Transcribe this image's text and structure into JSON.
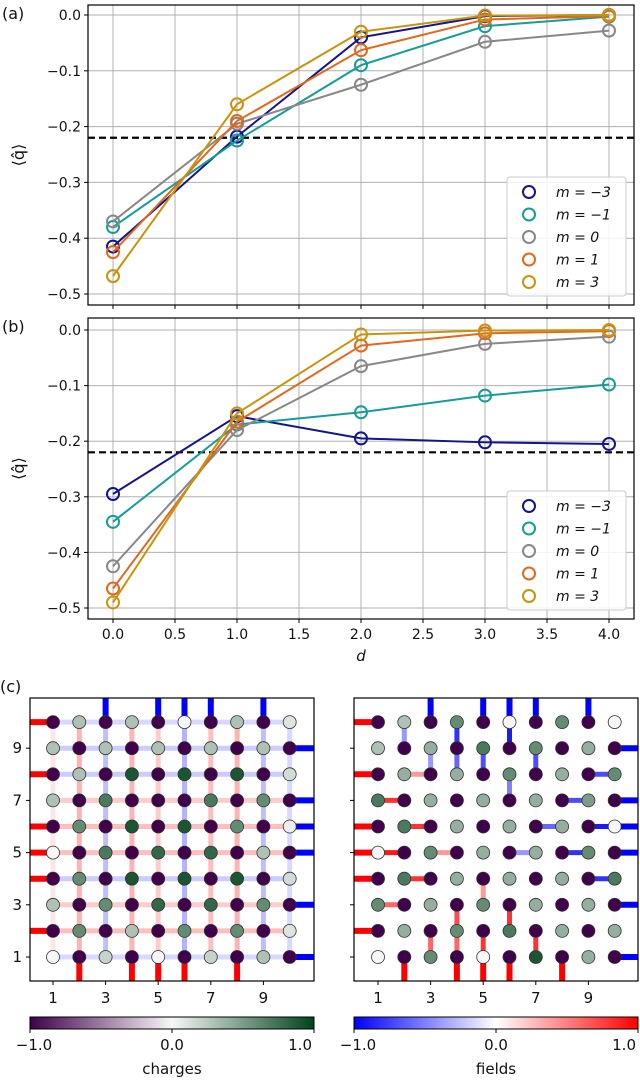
{
  "chart_data": [
    {
      "panel_label": "(a)",
      "type": "line",
      "x": [
        0,
        1,
        2,
        3,
        4
      ],
      "xlim": [
        -0.2,
        4.2
      ],
      "ylim": [
        -0.52,
        0.02
      ],
      "yticks": [
        0,
        -0.1,
        -0.2,
        -0.3,
        -0.4,
        -0.5
      ],
      "ytick_labels": [
        "0.0",
        "−0.1",
        "−0.2",
        "−0.3",
        "−0.4",
        "−0.5"
      ],
      "xticks": [
        0,
        0.5,
        1,
        1.5,
        2,
        2.5,
        3,
        3.5,
        4
      ],
      "ylabel": "⟨q̂⟩",
      "xlabel": "",
      "grid": true,
      "reference_line": -0.22,
      "legend": "lower-right",
      "series": [
        {
          "name": "m = −3",
          "color": "#14148c",
          "values": [
            -0.415,
            -0.218,
            -0.04,
            -0.002,
            0
          ]
        },
        {
          "name": "m = −1",
          "color": "#179c98",
          "values": [
            -0.38,
            -0.225,
            -0.09,
            -0.02,
            -0.003
          ]
        },
        {
          "name": "m = 0",
          "color": "#888888",
          "values": [
            -0.37,
            -0.195,
            -0.125,
            -0.048,
            -0.028
          ]
        },
        {
          "name": "m = 1",
          "color": "#e0691e",
          "values": [
            -0.425,
            -0.19,
            -0.063,
            -0.008,
            -0.002
          ]
        },
        {
          "name": "m = 3",
          "color": "#c8940f",
          "values": [
            -0.468,
            -0.16,
            -0.03,
            -0.001,
            0
          ]
        }
      ]
    },
    {
      "panel_label": "(b)",
      "type": "line",
      "x": [
        0,
        1,
        2,
        3,
        4
      ],
      "xlim": [
        -0.2,
        4.2
      ],
      "ylim": [
        -0.52,
        0.02
      ],
      "yticks": [
        0,
        -0.1,
        -0.2,
        -0.3,
        -0.4,
        -0.5
      ],
      "ytick_labels": [
        "0.0",
        "−0.1",
        "−0.2",
        "−0.3",
        "−0.4",
        "−0.5"
      ],
      "xticks": [
        0,
        0.5,
        1,
        1.5,
        2,
        2.5,
        3,
        3.5,
        4
      ],
      "xtick_labels": [
        "0.0",
        "0.5",
        "1.0",
        "1.5",
        "2.0",
        "2.5",
        "3.0",
        "3.5",
        "4.0"
      ],
      "ylabel": "⟨q̂⟩",
      "xlabel": "d",
      "grid": true,
      "reference_line": -0.22,
      "legend": "lower-right",
      "series": [
        {
          "name": "m = −3",
          "color": "#14148c",
          "values": [
            -0.295,
            -0.155,
            -0.195,
            -0.202,
            -0.205
          ]
        },
        {
          "name": "m = −1",
          "color": "#179c98",
          "values": [
            -0.345,
            -0.17,
            -0.148,
            -0.118,
            -0.098
          ]
        },
        {
          "name": "m = 0",
          "color": "#888888",
          "values": [
            -0.425,
            -0.18,
            -0.065,
            -0.025,
            -0.012
          ]
        },
        {
          "name": "m = 1",
          "color": "#e0691e",
          "values": [
            -0.465,
            -0.165,
            -0.028,
            -0.006,
            -0.002
          ]
        },
        {
          "name": "m = 3",
          "color": "#c8940f",
          "values": [
            -0.49,
            -0.15,
            -0.008,
            -0.001,
            0
          ]
        }
      ]
    },
    {
      "panel_label": "(c)",
      "type": "heatmap",
      "ticks": [
        1,
        3,
        5,
        7,
        9
      ],
      "tick_labels": [
        "1",
        "3",
        "5",
        "7",
        "9"
      ],
      "colorbars": [
        {
          "label": "charges",
          "range": [
            -1,
            1
          ],
          "tick_labels": [
            "−1.0",
            "0.0",
            "1.0"
          ],
          "colors": [
            "#40004b",
            "#f7f7f7",
            "#00441b"
          ]
        },
        {
          "label": "fields",
          "range": [
            -1,
            1
          ],
          "tick_labels": [
            "−1.0",
            "0.0",
            "1.0"
          ],
          "colors": [
            "#0000ff",
            "#ffffff",
            "#ff0000"
          ]
        }
      ],
      "lattices": [
        {
          "charges_rows_top_to_bottom": [
            [
              -1,
              0.3,
              -1,
              0.3,
              -1,
              0,
              -1,
              0.3,
              -1,
              0.1
            ],
            [
              0.3,
              -1,
              0.3,
              -1,
              0.3,
              -1,
              0.3,
              -1,
              0.3,
              -1
            ],
            [
              -1,
              0.3,
              -1,
              0.9,
              -1,
              0.9,
              -1,
              0.9,
              -1,
              0.15
            ],
            [
              0.3,
              -1,
              0.7,
              -1,
              -1,
              -1,
              0.7,
              -1,
              0.6,
              -1
            ],
            [
              -1,
              0.6,
              -1,
              0.9,
              -1,
              0.9,
              -1,
              0.6,
              -1,
              0.05
            ],
            [
              0,
              -1,
              0.7,
              -1,
              0.8,
              -1,
              0.8,
              -1,
              0.3,
              -1
            ],
            [
              -1,
              0.6,
              -1,
              0.9,
              -1,
              0.9,
              -1,
              0.9,
              -1,
              0.15
            ],
            [
              0.3,
              -1,
              0.6,
              -1,
              0.8,
              -1,
              0.8,
              -1,
              0.6,
              -1
            ],
            [
              -1,
              0.6,
              -1,
              0.3,
              -1,
              0.6,
              -1,
              0.6,
              -1,
              0.1
            ],
            [
              0,
              -1,
              0.2,
              -1,
              0,
              -1,
              0.2,
              -1,
              0.3,
              -1
            ]
          ],
          "row_link_fields_top_to_bottom": [
            -0.15,
            -0.2,
            -0.2,
            0.2,
            0.25,
            0.25,
            -0.2,
            0.2,
            0.25,
            -0.15
          ],
          "column_link_fields": [
            0.1,
            0.3,
            -0.25,
            0.3,
            0.2,
            -0.3,
            0.25,
            0.3,
            -0.25,
            -0.15
          ],
          "boundary": {
            "left_red_rows": [
              10,
              8,
              6,
              5,
              4,
              2
            ],
            "right_blue_rows": [
              9,
              7,
              6,
              5,
              3,
              1
            ],
            "top_blue_cols": [
              3,
              5,
              6,
              7,
              9
            ],
            "bottom_red_cols": [
              2,
              4,
              5,
              6,
              8
            ]
          }
        },
        {
          "charges_rows_top_to_bottom": [
            [
              -1,
              0.3,
              -1,
              0.6,
              -1,
              0,
              -1,
              0.6,
              -1,
              0
            ],
            [
              0.3,
              -1,
              0.4,
              -1,
              0.7,
              -1,
              0.6,
              -1,
              0.4,
              -1
            ],
            [
              -1,
              0.4,
              -1,
              0.4,
              -1,
              0.6,
              -1,
              0.4,
              -1,
              0.6
            ],
            [
              0.7,
              -1,
              0.4,
              -1,
              0.4,
              -1,
              0.4,
              -1,
              0.5,
              -1
            ],
            [
              -1,
              0.7,
              -1,
              0.4,
              -1,
              0.4,
              -1,
              0.4,
              -1,
              0
            ],
            [
              0,
              -1,
              0.6,
              -1,
              0.4,
              -1,
              0.4,
              -1,
              0.6,
              -1
            ],
            [
              -1,
              0.7,
              -1,
              0.4,
              -1,
              0.4,
              -1,
              0.4,
              -1,
              0.7
            ],
            [
              0.6,
              -1,
              0.4,
              -1,
              0.6,
              -1,
              0.4,
              -1,
              0.4,
              -1
            ],
            [
              -1,
              0.4,
              -1,
              0.6,
              -1,
              0.7,
              -1,
              0.4,
              -1,
              0.4
            ],
            [
              0,
              -1,
              0.6,
              -1,
              0,
              -1,
              0.9,
              -1,
              0.4,
              -1
            ]
          ],
          "strong_links": [
            {
              "a": [
                4,
                10
              ],
              "b": [
                4,
                9
              ],
              "f": -0.8
            },
            {
              "a": [
                4,
                9
              ],
              "b": [
                4,
                8
              ],
              "f": -0.6
            },
            {
              "a": [
                6,
                10
              ],
              "b": [
                6,
                9
              ],
              "f": -0.9
            },
            {
              "a": [
                5,
                9
              ],
              "b": [
                5,
                8
              ],
              "f": -0.7
            },
            {
              "a": [
                7,
                9
              ],
              "b": [
                7,
                8
              ],
              "f": -0.7
            },
            {
              "a": [
                6,
                8
              ],
              "b": [
                6,
                7
              ],
              "f": -0.5
            },
            {
              "a": [
                3,
                9
              ],
              "b": [
                3,
                8
              ],
              "f": -0.4
            },
            {
              "a": [
                2,
                10
              ],
              "b": [
                2,
                9
              ],
              "f": -0.4
            },
            {
              "a": [
                9,
                8
              ],
              "b": [
                10,
                8
              ],
              "f": -0.7
            },
            {
              "a": [
                9,
                6
              ],
              "b": [
                10,
                6
              ],
              "f": -0.9
            },
            {
              "a": [
                9,
                4
              ],
              "b": [
                10,
                4
              ],
              "f": -0.8
            },
            {
              "a": [
                8,
                7
              ],
              "b": [
                9,
                7
              ],
              "f": -0.7
            },
            {
              "a": [
                8,
                5
              ],
              "b": [
                9,
                5
              ],
              "f": -0.8
            },
            {
              "a": [
                7,
                6
              ],
              "b": [
                8,
                6
              ],
              "f": -0.6
            },
            {
              "a": [
                6,
                5
              ],
              "b": [
                7,
                5
              ],
              "f": -0.4
            },
            {
              "a": [
                1,
                7
              ],
              "b": [
                2,
                7
              ],
              "f": 0.8
            },
            {
              "a": [
                2,
                6
              ],
              "b": [
                3,
                6
              ],
              "f": 0.8
            },
            {
              "a": [
                1,
                5
              ],
              "b": [
                2,
                5
              ],
              "f": 0.9
            },
            {
              "a": [
                2,
                4
              ],
              "b": [
                3,
                4
              ],
              "f": 0.8
            },
            {
              "a": [
                1,
                3
              ],
              "b": [
                2,
                3
              ],
              "f": 0.6
            },
            {
              "a": [
                2,
                8
              ],
              "b": [
                3,
                8
              ],
              "f": 0.4
            },
            {
              "a": [
                3,
                5
              ],
              "b": [
                4,
                5
              ],
              "f": 0.4
            },
            {
              "a": [
                4,
                3
              ],
              "b": [
                4,
                2
              ],
              "f": 0.7
            },
            {
              "a": [
                4,
                2
              ],
              "b": [
                4,
                1
              ],
              "f": 0.6
            },
            {
              "a": [
                5,
                2
              ],
              "b": [
                5,
                1
              ],
              "f": 0.8
            },
            {
              "a": [
                6,
                3
              ],
              "b": [
                6,
                2
              ],
              "f": 0.8
            },
            {
              "a": [
                7,
                2
              ],
              "b": [
                7,
                1
              ],
              "f": 0.8
            },
            {
              "a": [
                3,
                2
              ],
              "b": [
                3,
                1
              ],
              "f": 0.6
            },
            {
              "a": [
                5,
                4
              ],
              "b": [
                5,
                3
              ],
              "f": 0.4
            }
          ],
          "boundary": {
            "left_red_rows": [
              10,
              8,
              6,
              5,
              4,
              2
            ],
            "right_blue_rows": [
              9,
              7,
              6,
              5,
              3,
              1
            ],
            "top_blue_cols": [
              3,
              5,
              6,
              7,
              9
            ],
            "bottom_red_cols": [
              2,
              4,
              5,
              6,
              8
            ]
          }
        }
      ]
    }
  ]
}
